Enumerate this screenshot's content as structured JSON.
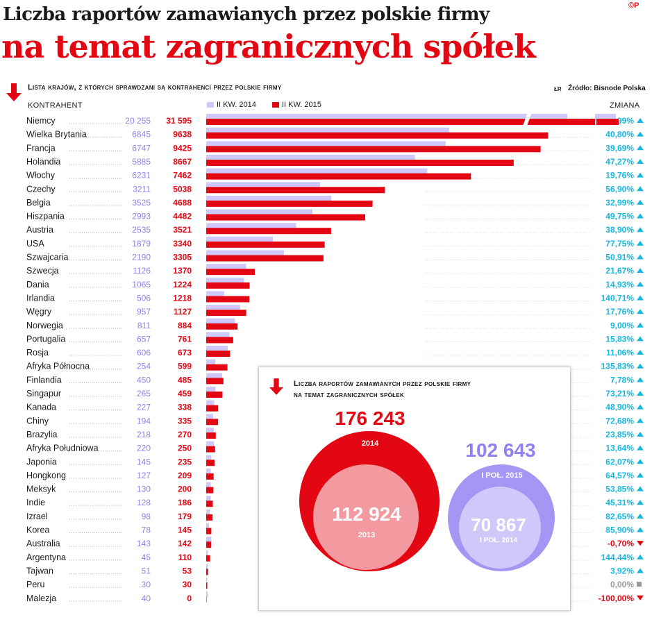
{
  "title_line1": "Liczba raportów zamawianych przez polskie firmy",
  "title_line2": "na temat zagranicznych spółek",
  "copyright": "©P",
  "subtitle": "Lista krajów, z których sprawdzani są kontrahenci przez polskie firmy",
  "author": "ŁR",
  "source": "Źródło: Bisnode Polska",
  "header_left": "KONTRAHENT",
  "header_right": "ZMIANA",
  "colors": {
    "c2014": "#cfc8fa",
    "c2015": "#e30613",
    "label2014": "#8f82f0",
    "change_up": "#17b8e0",
    "change_down": "#e30613",
    "change_zero": "#9a9a9a"
  },
  "chart_data": {
    "type": "bar",
    "series": [
      {
        "name": "II KW. 2014",
        "values": [
          20255,
          6845,
          6747,
          5885,
          6231,
          3211,
          3525,
          2993,
          2535,
          1879,
          2190,
          1126,
          1065,
          506,
          957,
          811,
          657,
          606,
          254,
          450,
          265,
          227,
          194,
          218,
          220,
          145,
          127,
          130,
          128,
          98,
          78,
          143,
          45,
          51,
          30,
          40
        ]
      },
      {
        "name": "II KW. 2015",
        "values": [
          31595,
          9638,
          9425,
          8667,
          7462,
          5038,
          4688,
          4482,
          3521,
          3340,
          3305,
          1370,
          1224,
          1218,
          1127,
          884,
          761,
          673,
          599,
          485,
          459,
          338,
          335,
          270,
          250,
          235,
          209,
          200,
          186,
          179,
          145,
          142,
          110,
          53,
          30,
          0
        ]
      }
    ],
    "categories": [
      "Niemcy",
      "Wielka Brytania",
      "Francja",
      "Holandia",
      "Włochy",
      "Czechy",
      "Belgia",
      "Hiszpania",
      "Austria",
      "USA",
      "Szwajcaria",
      "Szwecja",
      "Dania",
      "Irlandia",
      "Węgry",
      "Norwegia",
      "Portugalia",
      "Rosja",
      "Afryka Północna",
      "Finlandia",
      "Singapur",
      "Kanada",
      "Chiny",
      "Brazylia",
      "Afryka Południowa",
      "Japonia",
      "Hongkong",
      "Meksyk",
      "Indie",
      "Izrael",
      "Korea",
      "Australia",
      "Argentyna",
      "Tajwan",
      "Peru",
      "Malezja"
    ],
    "labels_2014": [
      "20 255",
      "6845",
      "6747",
      "5885",
      "6231",
      "3211",
      "3525",
      "2993",
      "2535",
      "1879",
      "2190",
      "1126",
      "1065",
      "506",
      "957",
      "811",
      "657",
      "606",
      "254",
      "450",
      "265",
      "227",
      "194",
      "218",
      "220",
      "145",
      "127",
      "130",
      "128",
      "98",
      "78",
      "143",
      "45",
      "51",
      "30",
      "40"
    ],
    "labels_2015": [
      "31 595",
      "9638",
      "9425",
      "8667",
      "7462",
      "5038",
      "4688",
      "4482",
      "3521",
      "3340",
      "3305",
      "1370",
      "1224",
      "1218",
      "1127",
      "884",
      "761",
      "673",
      "599",
      "485",
      "459",
      "338",
      "335",
      "270",
      "250",
      "235",
      "209",
      "200",
      "186",
      "179",
      "145",
      "142",
      "110",
      "53",
      "30",
      "0"
    ],
    "changes": [
      "55,99%",
      "40,80%",
      "39,69%",
      "47,27%",
      "19,76%",
      "56,90%",
      "32,99%",
      "49,75%",
      "38,90%",
      "77,75%",
      "50,91%",
      "21,67%",
      "14,93%",
      "140,71%",
      "17,76%",
      "9,00%",
      "15,83%",
      "11,06%",
      "135,83%",
      "7,78%",
      "73,21%",
      "48,90%",
      "72,68%",
      "23,85%",
      "13,64%",
      "62,07%",
      "64,57%",
      "53,85%",
      "45,31%",
      "82,65%",
      "85,90%",
      "-0,70%",
      "144,44%",
      "3,92%",
      "0,00%",
      "-100,00%"
    ],
    "change_direction": [
      "up",
      "up",
      "up",
      "up",
      "up",
      "up",
      "up",
      "up",
      "up",
      "up",
      "up",
      "up",
      "up",
      "up",
      "up",
      "up",
      "up",
      "up",
      "up",
      "up",
      "up",
      "up",
      "up",
      "up",
      "up",
      "up",
      "up",
      "up",
      "up",
      "up",
      "up",
      "down",
      "up",
      "up",
      "zero",
      "down"
    ],
    "axis_break_value": 10000,
    "grid": false
  },
  "inset": {
    "title_line1": "Liczba raportów zamawianych przez polskie firmy",
    "title_line2": "na temat zagranicznych spółek",
    "total_2014": "176 243",
    "label_2014": "2014",
    "total_2013": "112 924",
    "label_2013": "2013",
    "total_h1_2015": "102 643",
    "label_h1_2015": "I POŁ. 2015",
    "total_h1_2014": "70 867",
    "label_h1_2014": "I POŁ. 2014"
  }
}
